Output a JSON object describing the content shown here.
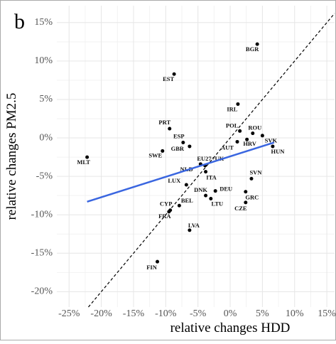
{
  "chart_data": {
    "type": "scatter",
    "panel_label": "b",
    "x_label": "relative changes HDD",
    "y_label": "relative changes PM2.5",
    "xlim": [
      -26.9,
      16.2
    ],
    "ylim": [
      -22.0,
      17.2
    ],
    "xticks": [
      {
        "value": -25,
        "label": "-25%"
      },
      {
        "value": -20,
        "label": "-20%"
      },
      {
        "value": -15,
        "label": "-15%"
      },
      {
        "value": -10,
        "label": "-10%"
      },
      {
        "value": -5,
        "label": "-5%"
      },
      {
        "value": 0,
        "label": "0%"
      },
      {
        "value": 5,
        "label": "5%"
      },
      {
        "value": 10,
        "label": "10%"
      },
      {
        "value": 15,
        "label": "15%"
      }
    ],
    "yticks": [
      {
        "value": -20,
        "label": "-20%"
      },
      {
        "value": -15,
        "label": "-15%"
      },
      {
        "value": -10,
        "label": "-10%"
      },
      {
        "value": -5,
        "label": "-5%"
      },
      {
        "value": 0,
        "label": "0%"
      },
      {
        "value": 5,
        "label": "5%"
      },
      {
        "value": 10,
        "label": "10%"
      },
      {
        "value": 15,
        "label": "15%"
      }
    ],
    "grid": true,
    "reference_line": "dashed",
    "series": [
      {
        "color": "#000000",
        "labels": [
          "BGR",
          "EST",
          "IRL",
          "PRT",
          "POL",
          "ROU",
          "ESP",
          "HRV",
          "SVK",
          "HUN",
          "AUT",
          "GBR",
          "SWE",
          "MLT",
          "EU27+UK",
          "NLD",
          "ITA",
          "SVN",
          "LUX",
          "DEU",
          "DNK",
          "GRC",
          "LTU",
          "CZE",
          "BEL",
          "CYP",
          "FRA",
          "LVA",
          "FIN"
        ],
        "x": [
          4.2,
          -8.7,
          1.2,
          -9.4,
          1.5,
          3.5,
          -7.3,
          2.6,
          5.0,
          6.6,
          1.1,
          -6.3,
          -10.5,
          -22.2,
          -4.6,
          -3.9,
          -3.8,
          3.3,
          -6.8,
          -2.3,
          -3.8,
          2.4,
          -3.0,
          2.4,
          -7.9,
          -9.3,
          -9.5,
          -6.3,
          -11.3
        ],
        "values": [
          12.2,
          8.3,
          4.4,
          1.2,
          0.9,
          0.6,
          -0.6,
          -0.2,
          0.3,
          -1.1,
          -0.5,
          -1.1,
          -1.7,
          -2.5,
          -3.4,
          -3.6,
          -4.4,
          -5.3,
          -6.1,
          -6.9,
          -7.5,
          -7.0,
          -7.9,
          -8.4,
          -8.8,
          -9.4,
          -9.6,
          -12.0,
          -16.1
        ]
      },
      {
        "type": "line",
        "color": "#3a66e0",
        "x": [
          -22.2,
          6.8
        ],
        "values": [
          -8.3,
          -0.6
        ]
      }
    ]
  }
}
